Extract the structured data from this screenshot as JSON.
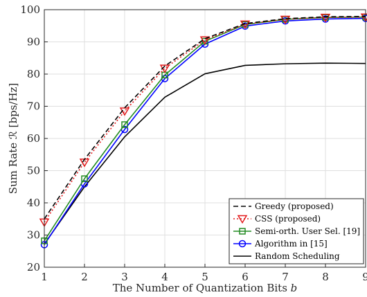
{
  "chart_data": {
    "type": "line",
    "xlabel": "The Number of Quantization Bits ",
    "xlabel_var": "b",
    "ylabel": "Sum Rate ℛ [bps/Hz]",
    "xlim": [
      1,
      9
    ],
    "ylim": [
      20,
      100
    ],
    "xticks": [
      "1",
      "2",
      "3",
      "4",
      "5",
      "6",
      "7",
      "8",
      "9"
    ],
    "yticks": [
      "20",
      "30",
      "40",
      "50",
      "60",
      "70",
      "80",
      "90",
      "100"
    ],
    "grid": true,
    "legend_position": "bottom-right",
    "x": [
      1,
      2,
      3,
      4,
      5,
      6,
      7,
      8,
      9
    ],
    "series": [
      {
        "name": "Greedy (proposed)",
        "values": [
          35.0,
          53.5,
          69.5,
          82.5,
          91.0,
          95.7,
          97.2,
          97.8,
          97.9
        ],
        "color": "#000000",
        "dash": "dashed",
        "marker": "none"
      },
      {
        "name": "CSS (proposed)",
        "values": [
          34.0,
          52.6,
          68.5,
          81.8,
          90.6,
          95.5,
          97.0,
          97.6,
          97.7
        ],
        "color": "#e31a1c",
        "dash": "dotted",
        "marker": "triangle-down"
      },
      {
        "name": "Semi-orth. User Sel. [19]",
        "values": [
          28.2,
          47.5,
          64.3,
          79.7,
          90.2,
          95.4,
          97.0,
          97.6,
          97.7
        ],
        "color": "#228b22",
        "dash": "solid",
        "marker": "square"
      },
      {
        "name": "Algorithm in [15]",
        "values": [
          27.0,
          45.9,
          62.8,
          78.6,
          89.3,
          94.9,
          96.5,
          97.1,
          97.3
        ],
        "color": "#0000ff",
        "dash": "solid",
        "marker": "circle"
      },
      {
        "name": "Random Scheduling",
        "values": [
          27.2,
          45.0,
          60.5,
          72.8,
          80.1,
          82.7,
          83.2,
          83.4,
          83.3
        ],
        "color": "#000000",
        "dash": "solid",
        "marker": "none"
      }
    ]
  }
}
